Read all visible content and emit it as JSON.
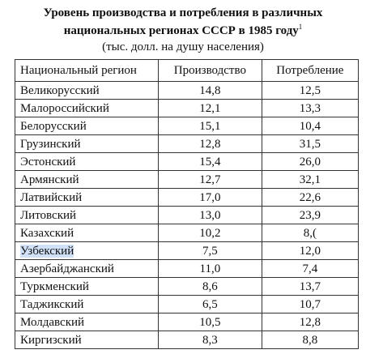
{
  "header": {
    "title_lines": [
      "Уровень производства и потребления в различных",
      "национальных регионах СССР в 1985 году"
    ],
    "footnote_mark": "1",
    "subtitle": "(тыс. долл. на душу населения)"
  },
  "table": {
    "columns": [
      "Национальный регион",
      "Производство",
      "Потребление"
    ],
    "rows": [
      [
        "Великорусский",
        "14,8",
        "12,5"
      ],
      [
        "Малороссийский",
        "12,1",
        "13,3"
      ],
      [
        "Белорусский",
        "15,1",
        "10,4"
      ],
      [
        "Грузинский",
        "12,8",
        "31,5"
      ],
      [
        "Эстонский",
        "15,4",
        "26,0"
      ],
      [
        "Армянский",
        "12,7",
        "32,1"
      ],
      [
        "Латвийский",
        "17,0",
        "22,6"
      ],
      [
        "Литовский",
        "13,0",
        "23,9"
      ],
      [
        "Казахский",
        "10,2",
        "8,("
      ],
      [
        "Узбекский",
        "7,5",
        "12,0"
      ],
      [
        "Азербайджанский",
        "11,0",
        "7,4"
      ],
      [
        "Туркменский",
        "8,6",
        "13,7"
      ],
      [
        "Таджикский",
        "6,5",
        "10,7"
      ],
      [
        "Молдавский",
        "10,5",
        "12,8"
      ],
      [
        "Киргизский",
        "8,3",
        "8,8"
      ]
    ]
  }
}
